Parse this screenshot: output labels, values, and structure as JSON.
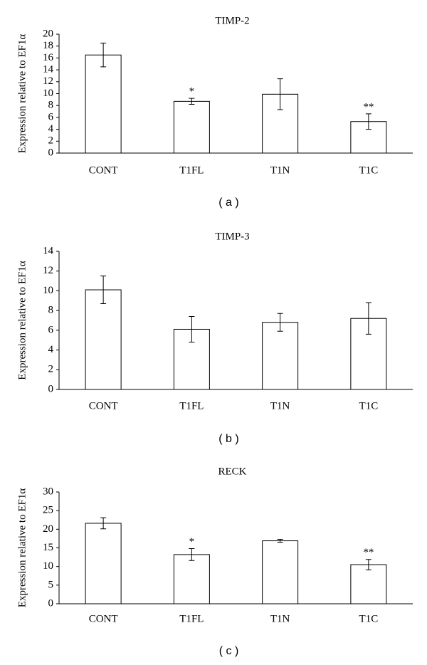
{
  "chart_data": [
    {
      "type": "bar",
      "title": "TIMP-2",
      "ylabel": "Expression relative to EF1α",
      "caption": "( a )",
      "categories": [
        "CONT",
        "T1FL",
        "T1N",
        "T1C"
      ],
      "values": [
        16.5,
        8.7,
        9.9,
        5.3
      ],
      "errors": [
        2.0,
        0.5,
        2.6,
        1.3
      ],
      "significance": [
        null,
        "*",
        null,
        "**"
      ],
      "color": "#ffffff",
      "ylim": [
        0,
        20
      ],
      "yticks": [
        0,
        2,
        4,
        6,
        8,
        10,
        12,
        14,
        16,
        18,
        20
      ]
    },
    {
      "type": "bar",
      "title": "TIMP-3",
      "ylabel": "Expression relative to EF1α",
      "caption": "( b )",
      "categories": [
        "CONT",
        "T1FL",
        "T1N",
        "T1C"
      ],
      "values": [
        10.1,
        6.1,
        6.8,
        7.2
      ],
      "errors": [
        1.4,
        1.3,
        0.9,
        1.6
      ],
      "significance": [
        null,
        null,
        null,
        null
      ],
      "color": "#ffffff",
      "ylim": [
        0,
        14
      ],
      "yticks": [
        0,
        2,
        4,
        6,
        8,
        10,
        12,
        14
      ]
    },
    {
      "type": "bar",
      "title": "RECK",
      "ylabel": "Expression relative to EF1α",
      "caption": "( c )",
      "categories": [
        "CONT",
        "T1FL",
        "T1N",
        "T1C"
      ],
      "values": [
        21.6,
        13.2,
        16.9,
        10.5
      ],
      "errors": [
        1.5,
        1.6,
        0.4,
        1.4
      ],
      "significance": [
        null,
        "*",
        null,
        "**"
      ],
      "color": "#ffffff",
      "ylim": [
        0,
        30
      ],
      "yticks": [
        0,
        5,
        10,
        15,
        20,
        25,
        30
      ]
    }
  ]
}
